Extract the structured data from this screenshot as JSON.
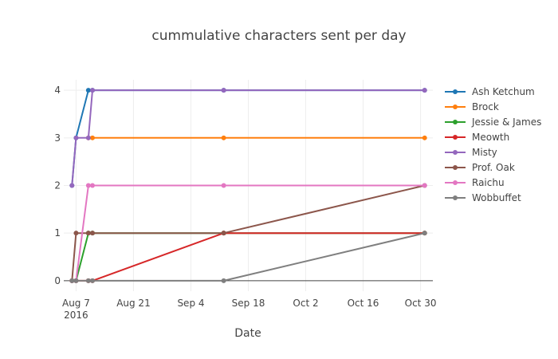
{
  "chart_data": {
    "type": "line",
    "title": "cummulative characters sent per day",
    "xlabel": "Date",
    "ylabel": "",
    "x_axis": {
      "type": "date",
      "range": [
        "2016-08-04",
        "2016-11-02"
      ],
      "ticks": [
        {
          "date": "2016-08-07",
          "label": "Aug 7",
          "sublabel": "2016"
        },
        {
          "date": "2016-08-21",
          "label": "Aug 21"
        },
        {
          "date": "2016-09-04",
          "label": "Sep 4"
        },
        {
          "date": "2016-09-18",
          "label": "Sep 18"
        },
        {
          "date": "2016-10-02",
          "label": "Oct 2"
        },
        {
          "date": "2016-10-16",
          "label": "Oct 16"
        },
        {
          "date": "2016-10-30",
          "label": "Oct 30"
        }
      ]
    },
    "y_axis": {
      "range": [
        -0.22,
        4.22
      ],
      "ticks": [
        0,
        1,
        2,
        3,
        4
      ]
    },
    "grid": true,
    "legend_position": "right",
    "series": [
      {
        "name": "Ash Ketchum",
        "color": "#1f77b4",
        "points": [
          [
            "2016-08-06",
            2
          ],
          [
            "2016-08-07",
            3
          ],
          [
            "2016-08-10",
            4
          ],
          [
            "2016-08-11",
            4
          ],
          [
            "2016-09-12",
            4
          ],
          [
            "2016-10-31",
            4
          ]
        ]
      },
      {
        "name": "Brock",
        "color": "#ff7f0e",
        "points": [
          [
            "2016-08-10",
            3
          ],
          [
            "2016-08-11",
            3
          ],
          [
            "2016-09-12",
            3
          ],
          [
            "2016-10-31",
            3
          ]
        ]
      },
      {
        "name": "Jessie & James",
        "color": "#2ca02c",
        "points": [
          [
            "2016-08-06",
            0
          ],
          [
            "2016-08-07",
            0
          ],
          [
            "2016-08-10",
            1
          ],
          [
            "2016-08-11",
            1
          ],
          [
            "2016-09-12",
            1
          ],
          [
            "2016-10-31",
            1
          ]
        ]
      },
      {
        "name": "Meowth",
        "color": "#d62728",
        "points": [
          [
            "2016-08-06",
            0
          ],
          [
            "2016-08-07",
            0
          ],
          [
            "2016-08-10",
            0
          ],
          [
            "2016-08-11",
            0
          ],
          [
            "2016-09-12",
            1
          ],
          [
            "2016-10-31",
            1
          ]
        ]
      },
      {
        "name": "Misty",
        "color": "#9467bd",
        "points": [
          [
            "2016-08-06",
            2
          ],
          [
            "2016-08-07",
            3
          ],
          [
            "2016-08-10",
            3
          ],
          [
            "2016-08-11",
            4
          ],
          [
            "2016-09-12",
            4
          ],
          [
            "2016-10-31",
            4
          ]
        ]
      },
      {
        "name": "Prof. Oak",
        "color": "#8c564b",
        "points": [
          [
            "2016-08-06",
            0
          ],
          [
            "2016-08-07",
            1
          ],
          [
            "2016-08-10",
            1
          ],
          [
            "2016-08-11",
            1
          ],
          [
            "2016-09-12",
            1
          ],
          [
            "2016-10-31",
            2
          ]
        ]
      },
      {
        "name": "Raichu",
        "color": "#e377c2",
        "points": [
          [
            "2016-08-06",
            0
          ],
          [
            "2016-08-07",
            0
          ],
          [
            "2016-08-10",
            2
          ],
          [
            "2016-08-11",
            2
          ],
          [
            "2016-09-12",
            2
          ],
          [
            "2016-10-31",
            2
          ]
        ]
      },
      {
        "name": "Wobbuffet",
        "color": "#7f7f7f",
        "points": [
          [
            "2016-08-06",
            0
          ],
          [
            "2016-08-07",
            0
          ],
          [
            "2016-08-10",
            0
          ],
          [
            "2016-08-11",
            0
          ],
          [
            "2016-09-12",
            0
          ],
          [
            "2016-10-31",
            1
          ]
        ]
      }
    ]
  }
}
